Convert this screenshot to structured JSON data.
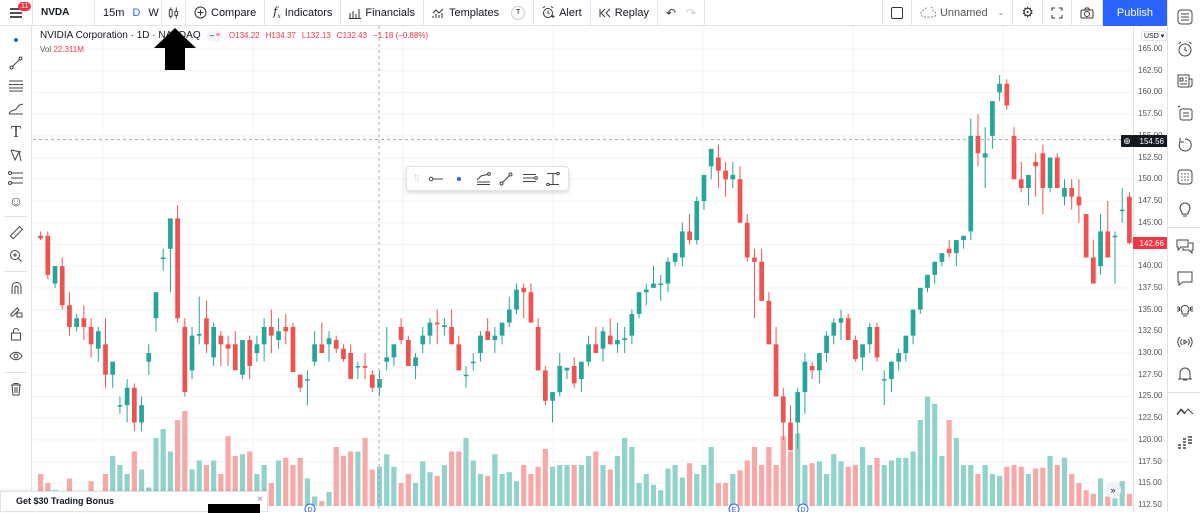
{
  "topbar": {
    "menu_badge": "11",
    "symbol": "NVDA",
    "intervals": [
      "15m",
      "D",
      "W"
    ],
    "active_interval": "D",
    "compare": "Compare",
    "indicators": "Indicators",
    "financials": "Financials",
    "templates": "Templates",
    "templates_shortcut": "T",
    "alert": "Alert",
    "replay": "Replay",
    "layout_name": "Unnamed",
    "publish": "Publish"
  },
  "legend": {
    "name": "NVIDIA Corporation · 1D · NASDAQ",
    "open": "O134.22",
    "high": "H134.37",
    "low": "L132.13",
    "close": "C132.43",
    "change": "−1.18 (−0.88%)",
    "vol_label": "Vol",
    "vol_value": "22.311M"
  },
  "price_axis": {
    "currency": "USD",
    "ticks": [
      "165.00",
      "162.50",
      "160.00",
      "157.50",
      "155.00",
      "152.50",
      "150.00",
      "147.50",
      "145.00",
      "142.50",
      "140.00",
      "137.50",
      "135.00",
      "132.50",
      "130.00",
      "127.50",
      "125.00",
      "122.50",
      "120.00",
      "117.50",
      "115.00",
      "112.50"
    ],
    "crosshair_price": "154.56",
    "last_price": "142.66"
  },
  "promo": {
    "text": "Get $30 Trading Bonus",
    "close": "×"
  },
  "colors": {
    "up": "#26a69a",
    "down": "#ef5350",
    "vol_up": "#92d2cc",
    "vol_down": "#f7a9a7",
    "accent": "#2962ff"
  },
  "chart_data": {
    "type": "candlestick",
    "title": "NVIDIA Corporation · 1D · NASDAQ",
    "ylim": [
      112.5,
      165
    ],
    "candles": [
      [
        143.5,
        144,
        143,
        143.2
      ],
      [
        143.5,
        144,
        138.5,
        139
      ],
      [
        138,
        140,
        137.5,
        140
      ],
      [
        140,
        141,
        135,
        135.5
      ],
      [
        135.5,
        137,
        132,
        133
      ],
      [
        133,
        134.5,
        132.5,
        134
      ],
      [
        134,
        135.5,
        131.5,
        133
      ],
      [
        133,
        134,
        129.5,
        131
      ],
      [
        130.5,
        133,
        129,
        132.5
      ],
      [
        131,
        134,
        126,
        127.5
      ],
      [
        127.5,
        129,
        126,
        129
      ],
      [
        124,
        125,
        123,
        124
      ],
      [
        124,
        127,
        122,
        126
      ],
      [
        126,
        126.5,
        121,
        122
      ],
      [
        122,
        125,
        121,
        124
      ],
      [
        129,
        131,
        127.5,
        130
      ],
      [
        134,
        137,
        132.5,
        137
      ],
      [
        141,
        142,
        139.5,
        141
      ],
      [
        142,
        143,
        137,
        145.5
      ],
      [
        145.5,
        147,
        133.5,
        134
      ],
      [
        133,
        134,
        125,
        125.5
      ],
      [
        128,
        133,
        127,
        132
      ],
      [
        132,
        136.5,
        131,
        132.2
      ],
      [
        134,
        136,
        130,
        131
      ],
      [
        129.5,
        133.5,
        128.5,
        133
      ],
      [
        132,
        132.5,
        128.5,
        131
      ],
      [
        131,
        132,
        128.5,
        130.5
      ],
      [
        131,
        132.5,
        129.5,
        128
      ],
      [
        127.5,
        131.5,
        127,
        131.5
      ],
      [
        131.5,
        132,
        127,
        128.5
      ],
      [
        130,
        132,
        129,
        131
      ],
      [
        131,
        134,
        129,
        133
      ],
      [
        133,
        135,
        130,
        132
      ],
      [
        131.5,
        134,
        130.5,
        132.5
      ],
      [
        133,
        134.5,
        131,
        132.5
      ],
      [
        133,
        133.5,
        128,
        127.8
      ],
      [
        127.5,
        127.5,
        125.5,
        126
      ],
      [
        127,
        128,
        124,
        127
      ],
      [
        129,
        132.5,
        128.5,
        131
      ],
      [
        131,
        133.5,
        130,
        130
      ],
      [
        131,
        132.5,
        129,
        131.7
      ],
      [
        131.5,
        132,
        130,
        130.5
      ],
      [
        130.5,
        131,
        129,
        129.3
      ],
      [
        130,
        131,
        128,
        127
      ],
      [
        128.5,
        129,
        127,
        128.5
      ],
      [
        128.5,
        130,
        127,
        128.3
      ],
      [
        127.5,
        128,
        125.5,
        126
      ],
      [
        126,
        128,
        125,
        127
      ],
      [
        129,
        133,
        128,
        129.5
      ],
      [
        129.5,
        131,
        128.5,
        131
      ],
      [
        133,
        134,
        131,
        131.5
      ],
      [
        131.5,
        132,
        129,
        128.5
      ],
      [
        128.5,
        130,
        127,
        129.5
      ],
      [
        131,
        133,
        130,
        132
      ],
      [
        132,
        134,
        131,
        133.5
      ],
      [
        133.5,
        135,
        131,
        133.3
      ],
      [
        133,
        134,
        132,
        133.2
      ],
      [
        133,
        135,
        131.5,
        131
      ],
      [
        131,
        132,
        128,
        128
      ],
      [
        127.5,
        128.5,
        126,
        127.5
      ],
      [
        129,
        130,
        128,
        129
      ],
      [
        130,
        132.5,
        129,
        132
      ],
      [
        132.5,
        134,
        132,
        131.5
      ],
      [
        131.5,
        133,
        130,
        132
      ],
      [
        132,
        133.5,
        131,
        133.5
      ],
      [
        133.5,
        136.5,
        133,
        135
      ],
      [
        135,
        138,
        134.5,
        137.3
      ],
      [
        137.5,
        138,
        134,
        137
      ],
      [
        137,
        138,
        135.5,
        133.5
      ],
      [
        133,
        134,
        128,
        128
      ],
      [
        128,
        128.5,
        124,
        124.5
      ],
      [
        124.5,
        125.5,
        122,
        125.5
      ],
      [
        125.5,
        130,
        125,
        128.5
      ],
      [
        128,
        128.3,
        127,
        128.3
      ],
      [
        128.5,
        129.5,
        126,
        126.5
      ],
      [
        127,
        129,
        125.5,
        129
      ],
      [
        129,
        132,
        128.5,
        131
      ],
      [
        131,
        133,
        130,
        130
      ],
      [
        130.5,
        133,
        129,
        132.5
      ],
      [
        132,
        134,
        131,
        131
      ],
      [
        131,
        133.5,
        130,
        131.5
      ],
      [
        131.5,
        133,
        130,
        131.7
      ],
      [
        132,
        135,
        131,
        134.5
      ],
      [
        134.5,
        137,
        134,
        137
      ],
      [
        137,
        138,
        135.5,
        137.3
      ],
      [
        137.5,
        140,
        137.5,
        138
      ],
      [
        138,
        139,
        136,
        138
      ],
      [
        138,
        141,
        137,
        140.5
      ],
      [
        140.5,
        141.5,
        140,
        141.5
      ],
      [
        141,
        145,
        140,
        144
      ],
      [
        144,
        146,
        142.5,
        143
      ],
      [
        143,
        148,
        142.5,
        147.5
      ],
      [
        147.5,
        150,
        146.5,
        150.5
      ],
      [
        151.5,
        152.5,
        150,
        153.5
      ],
      [
        152.5,
        154,
        149,
        151
      ],
      [
        151,
        152,
        148,
        150
      ],
      [
        150,
        152,
        149,
        150.5
      ],
      [
        150,
        151.5,
        145,
        145
      ],
      [
        145,
        146,
        140.5,
        141
      ],
      [
        141,
        142,
        134,
        140.5
      ],
      [
        140.5,
        142,
        136,
        136
      ],
      [
        136,
        137,
        131,
        131
      ],
      [
        131,
        133,
        127,
        125
      ],
      [
        125,
        126,
        120,
        122
      ],
      [
        122,
        124,
        119,
        118.8
      ],
      [
        122,
        126,
        119,
        125.5
      ],
      [
        125.5,
        130,
        123,
        129
      ],
      [
        128.5,
        129,
        127,
        128
      ],
      [
        128,
        130,
        126.5,
        130
      ],
      [
        130,
        132.5,
        129,
        132
      ],
      [
        132,
        134,
        131,
        133.5
      ],
      [
        133.5,
        135,
        131.5,
        134
      ],
      [
        134,
        134.5,
        131.5,
        131.5
      ],
      [
        131.5,
        132,
        129,
        129.3
      ],
      [
        129.5,
        131,
        128,
        131
      ],
      [
        131,
        133.5,
        130,
        133
      ],
      [
        133,
        133.5,
        129,
        129.5
      ],
      [
        127,
        128,
        124,
        127
      ],
      [
        127,
        129,
        125.5,
        129
      ],
      [
        129,
        130.5,
        128,
        130
      ],
      [
        130,
        131.5,
        129,
        132
      ],
      [
        132,
        135,
        131,
        135
      ],
      [
        135,
        137,
        134.5,
        137.5
      ],
      [
        137.5,
        139,
        137,
        139
      ],
      [
        139,
        140.5,
        138,
        140.5
      ],
      [
        140.5,
        141,
        140,
        141.5
      ],
      [
        142,
        143,
        141,
        141.5
      ],
      [
        141.5,
        143,
        140,
        143
      ],
      [
        143,
        143.5,
        142,
        143.5
      ],
      [
        144,
        157,
        143,
        155
      ],
      [
        155,
        157.5,
        151.5,
        153
      ],
      [
        152.5,
        156,
        149,
        153
      ],
      [
        155,
        159,
        153.5,
        159
      ],
      [
        160,
        162,
        159,
        161
      ],
      [
        161,
        161.5,
        158,
        158.5
      ],
      [
        155,
        156,
        152,
        150
      ],
      [
        150,
        152,
        148.5,
        149
      ],
      [
        149,
        150,
        147,
        150.5
      ],
      [
        152,
        153,
        148,
        151.5
      ],
      [
        153,
        154,
        146,
        149
      ],
      [
        149,
        152.5,
        148.5,
        152.5
      ],
      [
        152.5,
        153,
        150,
        149
      ],
      [
        148,
        150,
        147,
        149
      ],
      [
        149,
        150,
        146.5,
        148
      ],
      [
        148,
        150,
        145,
        147
      ],
      [
        146,
        146,
        141,
        141
      ],
      [
        141,
        143,
        138,
        138
      ],
      [
        140,
        146,
        139,
        144
      ],
      [
        144,
        147.5,
        141,
        141
      ],
      [
        143.5,
        144,
        138,
        143.5
      ],
      [
        146.5,
        149,
        145,
        146.5
      ],
      [
        148,
        148.5,
        142.5,
        142.66
      ]
    ]
  }
}
